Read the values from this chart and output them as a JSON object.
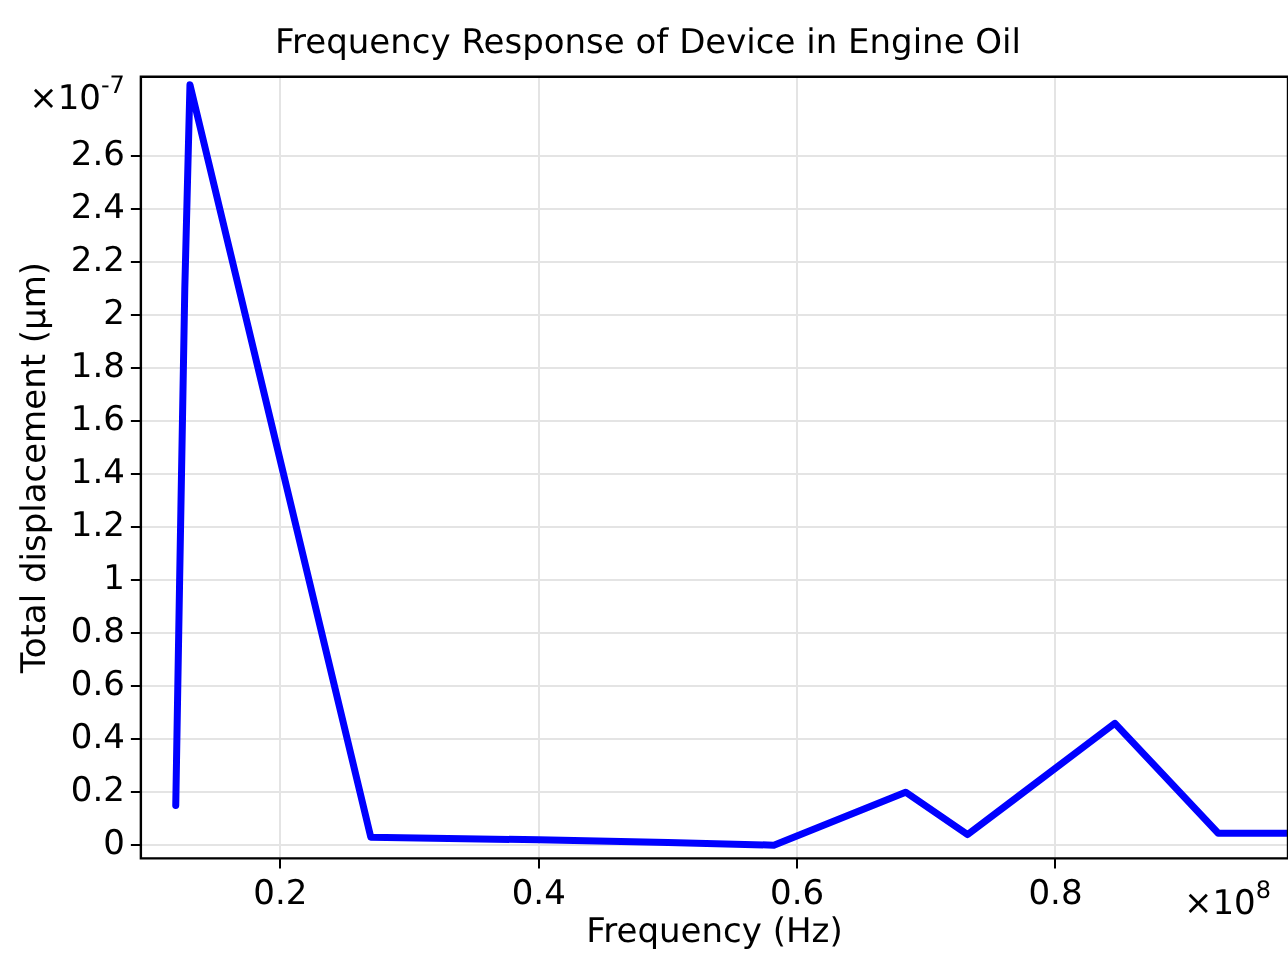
{
  "chart_data": {
    "type": "line",
    "title": "Frequency Response of Device in Engine Oil",
    "xlabel": "Frequency (Hz)",
    "ylabel": "Total displacement (µm)",
    "annotations": [
      "×10$^{8}$",
      "×10$^{-7}$"
    ],
    "x": [
      0.119,
      0.122,
      0.126,
      0.13,
      0.27,
      0.4,
      0.5,
      0.582,
      0.684,
      0.732,
      0.846,
      0.926,
      0.98
    ],
    "series": [
      {
        "color": "#0000ff",
        "values": [
          0.15,
          1.0,
          2.1,
          2.87,
          0.03,
          0.02,
          0.01,
          0.0,
          0.2,
          0.04,
          0.46,
          0.045,
          0.045
        ]
      }
    ],
    "xlim": [
      0.092,
      0.98
    ],
    "xticks": [
      0.2,
      0.4,
      0.6,
      0.8
    ],
    "ylim": [
      -0.05,
      2.9
    ],
    "yticks": [
      0,
      0.2,
      0.4,
      0.6,
      0.8,
      1,
      1.2,
      1.4,
      1.6,
      1.8,
      2,
      2.2,
      2.4,
      2.6
    ],
    "grid": true,
    "legend": false,
    "marker": "none",
    "line_style": "solid"
  }
}
